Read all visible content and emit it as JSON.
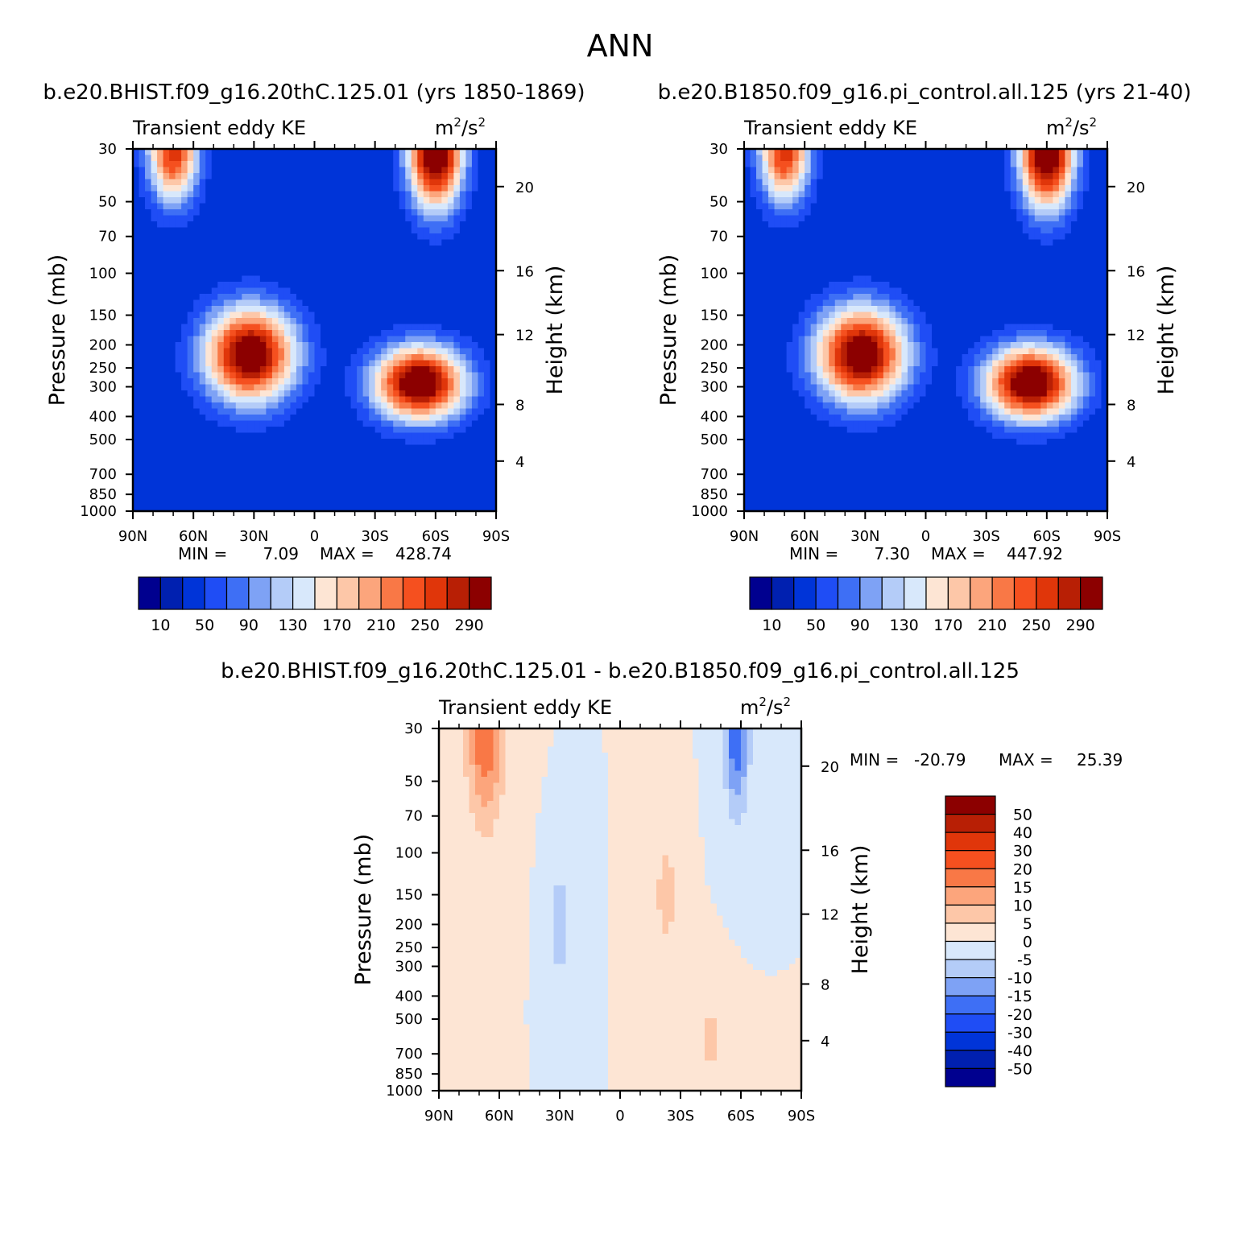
{
  "figure": {
    "title": "ANN",
    "top_left_header": "b.e20.BHIST.f09_g16.20thC.125.01 (yrs 1850-1869)",
    "top_right_header": "b.e20.B1850.f09_g16.pi_control.all.125 (yrs 21-40)",
    "bottom_header": "b.e20.BHIST.f09_g16.20thC.125.01 - b.e20.B1850.f09_g16.pi_control.all.125"
  },
  "chart_data": [
    {
      "id": "case1",
      "type": "contour",
      "title": "Transient eddy KE",
      "units_base": "m",
      "units_exp1": "2",
      "units_mid": "/s",
      "units_exp2": "2",
      "ylabel": "Pressure (mb)",
      "y2label": "Height (km)",
      "xticks": [
        "90N",
        "60N",
        "30N",
        "0",
        "30S",
        "60S",
        "90S"
      ],
      "yticks": [
        30,
        50,
        70,
        100,
        150,
        200,
        250,
        300,
        400,
        500,
        700,
        850,
        1000
      ],
      "y2ticks": [
        20,
        16,
        12,
        8,
        4
      ],
      "min_label": "MIN =",
      "min_value": "7.09",
      "max_label": "MAX =",
      "max_value": "428.74",
      "colorbar_labels": [
        "10",
        "50",
        "90",
        "130",
        "170",
        "210",
        "250",
        "290"
      ],
      "colors": [
        "#00008f",
        "#0020b0",
        "#0034d8",
        "#1f4df5",
        "#3e6ff5",
        "#7ea2f5",
        "#b4ccf8",
        "#d8e8fb",
        "#fde5d4",
        "#fdc7a8",
        "#fca57c",
        "#f97846",
        "#f5501f",
        "#e0360a",
        "#b81f05",
        "#8c0000"
      ],
      "features": [
        {
          "lat": -52,
          "p": 290,
          "amp": 15.5,
          "sx": 22,
          "sy": 0.35
        },
        {
          "lat": 32,
          "p": 220,
          "amp": 15,
          "sx": 22,
          "sy": 0.45
        },
        {
          "lat": -60,
          "p": 30,
          "amp": 16.5,
          "sx": 13,
          "sy": 0.55
        },
        {
          "lat": 70,
          "p": 30,
          "amp": 12,
          "sx": 12,
          "sy": 0.5
        }
      ]
    },
    {
      "id": "case2",
      "type": "contour",
      "title": "Transient eddy KE",
      "units_base": "m",
      "units_exp1": "2",
      "units_mid": "/s",
      "units_exp2": "2",
      "ylabel": "Pressure (mb)",
      "y2label": "Height (km)",
      "xticks": [
        "90N",
        "60N",
        "30N",
        "0",
        "30S",
        "60S",
        "90S"
      ],
      "yticks": [
        30,
        50,
        70,
        100,
        150,
        200,
        250,
        300,
        400,
        500,
        700,
        850,
        1000
      ],
      "y2ticks": [
        20,
        16,
        12,
        8,
        4
      ],
      "min_label": "MIN =",
      "min_value": "7.30",
      "max_label": "MAX =",
      "max_value": "447.92",
      "colorbar_labels": [
        "10",
        "50",
        "90",
        "130",
        "170",
        "210",
        "250",
        "290"
      ],
      "colors": [
        "#00008f",
        "#0020b0",
        "#0034d8",
        "#1f4df5",
        "#3e6ff5",
        "#7ea2f5",
        "#b4ccf8",
        "#d8e8fb",
        "#fde5d4",
        "#fdc7a8",
        "#fca57c",
        "#f97846",
        "#f5501f",
        "#e0360a",
        "#b81f05",
        "#8c0000"
      ],
      "features": [
        {
          "lat": -52,
          "p": 290,
          "amp": 15.5,
          "sx": 22,
          "sy": 0.35
        },
        {
          "lat": 32,
          "p": 220,
          "amp": 15,
          "sx": 22,
          "sy": 0.45
        },
        {
          "lat": -60,
          "p": 30,
          "amp": 16.5,
          "sx": 13,
          "sy": 0.55
        },
        {
          "lat": 70,
          "p": 30,
          "amp": 12,
          "sx": 12,
          "sy": 0.5
        }
      ]
    },
    {
      "id": "diff",
      "type": "contour",
      "title": "Transient eddy KE",
      "units_base": "m",
      "units_exp1": "2",
      "units_mid": "/s",
      "units_exp2": "2",
      "ylabel": "Pressure (mb)",
      "y2label": "Height (km)",
      "xticks": [
        "90N",
        "60N",
        "30N",
        "0",
        "30S",
        "60S",
        "90S"
      ],
      "yticks": [
        30,
        50,
        70,
        100,
        150,
        200,
        250,
        300,
        400,
        500,
        700,
        850,
        1000
      ],
      "y2ticks": [
        20,
        16,
        12,
        8,
        4
      ],
      "min_label": "MIN =",
      "min_value": "-20.79",
      "max_label": "MAX =",
      "max_value": "25.39",
      "colorbar_labels": [
        "50",
        "40",
        "30",
        "20",
        "15",
        "10",
        "5",
        "0",
        "-5",
        "-10",
        "-15",
        "-20",
        "-30",
        "-40",
        "-50"
      ],
      "colors": [
        "#8c0000",
        "#b81f05",
        "#e0360a",
        "#f5501f",
        "#f97846",
        "#fca57c",
        "#fdc7a8",
        "#fde5d4",
        "#d8e8fb",
        "#b4ccf8",
        "#7ea2f5",
        "#3e6ff5",
        "#1f4df5",
        "#0034d8",
        "#0020b0",
        "#00008f"
      ],
      "features": [
        {
          "lat": 67,
          "p": 30,
          "amp": 4,
          "sx": 9,
          "sy": 0.9
        },
        {
          "lat": -58,
          "p": 30,
          "amp": -4,
          "sx": 6,
          "sy": 0.8
        },
        {
          "lat": 30,
          "p": 200,
          "amp": -2,
          "sx": 5,
          "sy": 0.5
        },
        {
          "lat": -23,
          "p": 150,
          "amp": 1.5,
          "sx": 6,
          "sy": 0.6
        },
        {
          "lat": -45,
          "p": 600,
          "amp": 1.2,
          "sx": 8,
          "sy": 0.5
        }
      ]
    }
  ]
}
